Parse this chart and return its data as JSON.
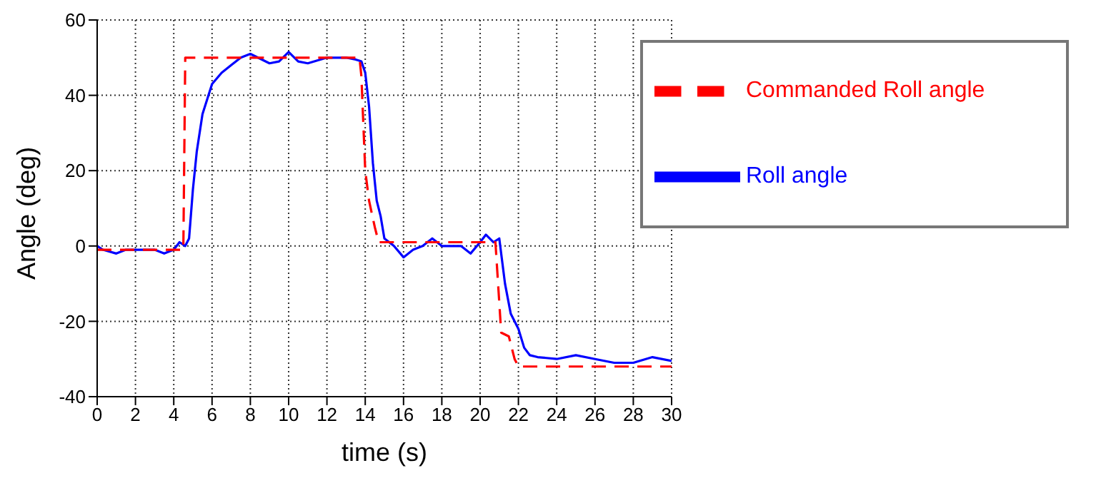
{
  "chart_data": {
    "type": "line",
    "xlabel": "time (s)",
    "ylabel": "Angle (deg)",
    "xlim": [
      0,
      30
    ],
    "ylim": [
      -40,
      60
    ],
    "xticks": [
      0,
      2,
      4,
      6,
      8,
      10,
      12,
      14,
      16,
      18,
      20,
      22,
      24,
      26,
      28,
      30
    ],
    "yticks": [
      -40,
      -20,
      0,
      20,
      40,
      60
    ],
    "grid": true,
    "legend": "top right",
    "marker": "none",
    "series": [
      {
        "name": "Roll angle",
        "color": "#0000ff",
        "line_style": "solid",
        "x": [
          0,
          0.3,
          1,
          1.5,
          2,
          3,
          3.5,
          4,
          4.3,
          4.6,
          4.8,
          5,
          5.2,
          5.5,
          6,
          6.5,
          7,
          7.5,
          8,
          9,
          9.5,
          10,
          10.5,
          11,
          12,
          13,
          13.5,
          13.8,
          14,
          14.2,
          14.4,
          14.6,
          14.8,
          15,
          15.5,
          16,
          16.5,
          17,
          17.5,
          18,
          19,
          19.5,
          20,
          20.3,
          20.7,
          21,
          21.3,
          21.6,
          22,
          22.3,
          22.6,
          23,
          24,
          25,
          26,
          27,
          28,
          29,
          30
        ],
        "values": [
          0,
          -1,
          -2,
          -1,
          -1,
          -1,
          -2,
          -1,
          1,
          0,
          2,
          15,
          25,
          35,
          43,
          46,
          48,
          50,
          51,
          48.5,
          49,
          51.5,
          49,
          48.5,
          50,
          50,
          49.5,
          49,
          46,
          37,
          22,
          12,
          8,
          2,
          0,
          -3,
          -1,
          0,
          2,
          0,
          0,
          -2,
          1,
          3,
          1,
          2,
          -10,
          -18,
          -22,
          -27,
          -29,
          -29.5,
          -30,
          -29,
          -30,
          -31,
          -31,
          -29.5,
          -30.5
        ]
      },
      {
        "name": "Commanded Roll angle",
        "color": "#ff0000",
        "line_style": "dashed",
        "x": [
          0,
          4.5,
          4.6,
          13.7,
          13.8,
          14,
          14.2,
          14.5,
          14.7,
          20.8,
          21,
          21.1,
          21.5,
          21.8,
          22,
          30
        ],
        "values": [
          -1,
          -1,
          50,
          50,
          45,
          20,
          12,
          5,
          1,
          1,
          -15,
          -23,
          -24,
          -30,
          -32,
          -32
        ]
      }
    ]
  }
}
